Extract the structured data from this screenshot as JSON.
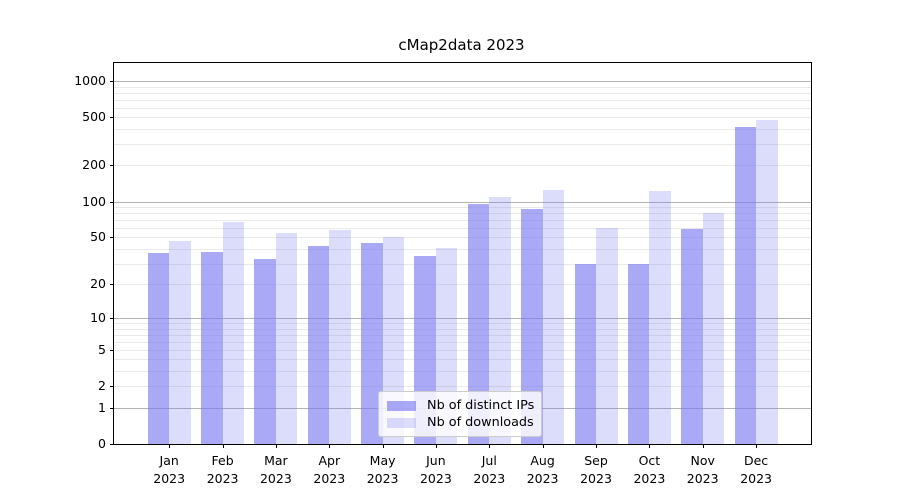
{
  "title": "cMap2data 2023",
  "chart_data": {
    "type": "bar",
    "categories": [
      "Jan 2023",
      "Feb 2023",
      "Mar 2023",
      "Apr 2023",
      "May 2023",
      "Jun 2023",
      "Jul 2023",
      "Aug 2023",
      "Sep 2023",
      "Oct 2023",
      "Nov 2023",
      "Dec 2023"
    ],
    "months": [
      "Jan",
      "Feb",
      "Mar",
      "Apr",
      "May",
      "Jun",
      "Jul",
      "Aug",
      "Sep",
      "Oct",
      "Nov",
      "Dec"
    ],
    "year_label": "2023",
    "series": [
      {
        "name": "Nb of distinct IPs",
        "color": "rgba(120,120,240,0.64)",
        "values": [
          37,
          38,
          33,
          42,
          45,
          35,
          95,
          86,
          30,
          30,
          59,
          415
        ]
      },
      {
        "name": "Nb of downloads",
        "color": "rgba(120,120,240,0.26)",
        "values": [
          47,
          67,
          55,
          58,
          50,
          41,
          110,
          125,
          60,
          122,
          80,
          478
        ]
      }
    ],
    "yscale": "log1p",
    "ylim": [
      0,
      1409
    ],
    "y_ticks": [
      0,
      1,
      2,
      5,
      10,
      20,
      50,
      100,
      200,
      500,
      1000
    ],
    "grid": true,
    "grid_major_color": "#b3b3b3",
    "grid_minor_color": "#e9e9e9",
    "legend_position": "lower center"
  }
}
